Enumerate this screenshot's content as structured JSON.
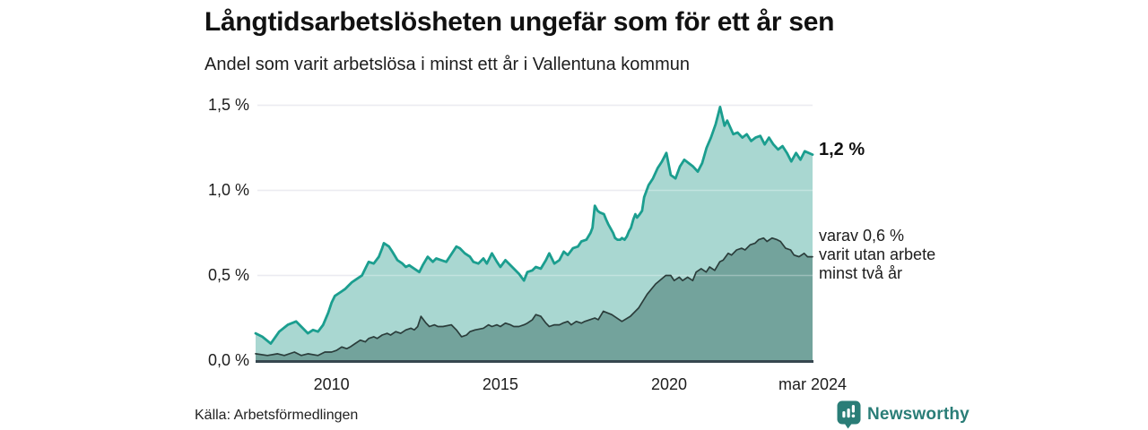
{
  "header": {},
  "chart_data": {
    "type": "area",
    "title": "Långtidsarbetslösheten ungefär som för ett år sen",
    "subtitle": "Andel som varit arbetslösa i minst ett år i Vallentuna kommun",
    "unit": "%",
    "x_domain": [
      2007.75,
      2024.25
    ],
    "y_domain": [
      0,
      1.5
    ],
    "grid": true,
    "legend_position": "direct-labels-right",
    "colors": {
      "grid": "#e3e3eb",
      "grid_over_fill": "rgba(255,255,255,0.30)",
      "baseline": "#37474f"
    },
    "y_ticks": [
      {
        "value": 0,
        "label": "0,0 %"
      },
      {
        "value": 0.5,
        "label": "0,5 %"
      },
      {
        "value": 1.0,
        "label": "1,0 %"
      },
      {
        "value": 1.5,
        "label": "1,5 %"
      }
    ],
    "x_ticks": [
      {
        "value": 2010,
        "label": "2010"
      },
      {
        "value": 2015,
        "label": "2015"
      },
      {
        "value": 2020,
        "label": "2020"
      },
      {
        "value": 2024.25,
        "label": "mar 2024"
      }
    ],
    "series": [
      {
        "name": "Andel som varit arbetslösa i minst ett år (totalt)",
        "fill": "#a9d7d1",
        "line": "#1b9e8f",
        "line_width": 2.8,
        "end_value": "1,2 %",
        "points": [
          [
            2007.75,
            0.16
          ],
          [
            2007.95,
            0.14
          ],
          [
            2008.2,
            0.1
          ],
          [
            2008.45,
            0.17
          ],
          [
            2008.7,
            0.21
          ],
          [
            2008.95,
            0.23
          ],
          [
            2009.1,
            0.2
          ],
          [
            2009.3,
            0.16
          ],
          [
            2009.45,
            0.18
          ],
          [
            2009.6,
            0.17
          ],
          [
            2009.75,
            0.21
          ],
          [
            2009.9,
            0.28
          ],
          [
            2010.0,
            0.34
          ],
          [
            2010.1,
            0.38
          ],
          [
            2010.25,
            0.4
          ],
          [
            2010.4,
            0.42
          ],
          [
            2010.5,
            0.44
          ],
          [
            2010.6,
            0.46
          ],
          [
            2010.75,
            0.48
          ],
          [
            2010.9,
            0.5
          ],
          [
            2011.0,
            0.54
          ],
          [
            2011.1,
            0.58
          ],
          [
            2011.25,
            0.57
          ],
          [
            2011.4,
            0.61
          ],
          [
            2011.5,
            0.66
          ],
          [
            2011.55,
            0.69
          ],
          [
            2011.7,
            0.67
          ],
          [
            2011.8,
            0.64
          ],
          [
            2011.95,
            0.59
          ],
          [
            2012.1,
            0.57
          ],
          [
            2012.2,
            0.55
          ],
          [
            2012.3,
            0.56
          ],
          [
            2012.45,
            0.54
          ],
          [
            2012.6,
            0.52
          ],
          [
            2012.7,
            0.56
          ],
          [
            2012.85,
            0.61
          ],
          [
            2013.0,
            0.58
          ],
          [
            2013.1,
            0.6
          ],
          [
            2013.25,
            0.59
          ],
          [
            2013.4,
            0.58
          ],
          [
            2013.5,
            0.61
          ],
          [
            2013.7,
            0.67
          ],
          [
            2013.8,
            0.66
          ],
          [
            2013.95,
            0.63
          ],
          [
            2014.1,
            0.61
          ],
          [
            2014.2,
            0.58
          ],
          [
            2014.35,
            0.57
          ],
          [
            2014.5,
            0.6
          ],
          [
            2014.6,
            0.57
          ],
          [
            2014.75,
            0.63
          ],
          [
            2014.9,
            0.58
          ],
          [
            2015.0,
            0.55
          ],
          [
            2015.15,
            0.59
          ],
          [
            2015.3,
            0.56
          ],
          [
            2015.4,
            0.54
          ],
          [
            2015.55,
            0.51
          ],
          [
            2015.7,
            0.47
          ],
          [
            2015.8,
            0.52
          ],
          [
            2015.95,
            0.53
          ],
          [
            2016.05,
            0.55
          ],
          [
            2016.2,
            0.54
          ],
          [
            2016.35,
            0.59
          ],
          [
            2016.45,
            0.63
          ],
          [
            2016.6,
            0.57
          ],
          [
            2016.75,
            0.59
          ],
          [
            2016.88,
            0.64
          ],
          [
            2017.0,
            0.62
          ],
          [
            2017.15,
            0.66
          ],
          [
            2017.3,
            0.67
          ],
          [
            2017.4,
            0.7
          ],
          [
            2017.55,
            0.71
          ],
          [
            2017.67,
            0.75
          ],
          [
            2017.73,
            0.78
          ],
          [
            2017.8,
            0.91
          ],
          [
            2017.88,
            0.88
          ],
          [
            2017.95,
            0.87
          ],
          [
            2018.07,
            0.86
          ],
          [
            2018.13,
            0.83
          ],
          [
            2018.2,
            0.8
          ],
          [
            2018.34,
            0.75
          ],
          [
            2018.4,
            0.72
          ],
          [
            2018.47,
            0.71
          ],
          [
            2018.55,
            0.71
          ],
          [
            2018.6,
            0.72
          ],
          [
            2018.68,
            0.71
          ],
          [
            2018.75,
            0.73
          ],
          [
            2018.81,
            0.76
          ],
          [
            2018.87,
            0.78
          ],
          [
            2018.94,
            0.83
          ],
          [
            2019.0,
            0.86
          ],
          [
            2019.05,
            0.84
          ],
          [
            2019.13,
            0.86
          ],
          [
            2019.2,
            0.88
          ],
          [
            2019.26,
            0.96
          ],
          [
            2019.39,
            1.03
          ],
          [
            2019.52,
            1.07
          ],
          [
            2019.66,
            1.13
          ],
          [
            2019.79,
            1.17
          ],
          [
            2019.92,
            1.22
          ],
          [
            2020.05,
            1.09
          ],
          [
            2020.19,
            1.07
          ],
          [
            2020.32,
            1.14
          ],
          [
            2020.45,
            1.18
          ],
          [
            2020.58,
            1.16
          ],
          [
            2020.71,
            1.14
          ],
          [
            2020.85,
            1.11
          ],
          [
            2020.98,
            1.16
          ],
          [
            2021.11,
            1.25
          ],
          [
            2021.24,
            1.31
          ],
          [
            2021.38,
            1.39
          ],
          [
            2021.51,
            1.49
          ],
          [
            2021.64,
            1.38
          ],
          [
            2021.72,
            1.41
          ],
          [
            2021.9,
            1.33
          ],
          [
            2022.03,
            1.34
          ],
          [
            2022.17,
            1.31
          ],
          [
            2022.3,
            1.33
          ],
          [
            2022.43,
            1.29
          ],
          [
            2022.56,
            1.31
          ],
          [
            2022.7,
            1.32
          ],
          [
            2022.83,
            1.27
          ],
          [
            2022.96,
            1.31
          ],
          [
            2023.09,
            1.27
          ],
          [
            2023.23,
            1.24
          ],
          [
            2023.36,
            1.26
          ],
          [
            2023.49,
            1.22
          ],
          [
            2023.62,
            1.17
          ],
          [
            2023.76,
            1.22
          ],
          [
            2023.89,
            1.18
          ],
          [
            2024.02,
            1.23
          ],
          [
            2024.25,
            1.21
          ]
        ]
      },
      {
        "name": "varav utan arbete minst två år",
        "fill": "#73a39c",
        "line": "#2b3d3b",
        "line_width": 1.7,
        "end_value": "0,6 %",
        "points": [
          [
            2007.75,
            0.04
          ],
          [
            2008.1,
            0.03
          ],
          [
            2008.4,
            0.04
          ],
          [
            2008.6,
            0.03
          ],
          [
            2008.9,
            0.05
          ],
          [
            2009.1,
            0.03
          ],
          [
            2009.3,
            0.04
          ],
          [
            2009.6,
            0.03
          ],
          [
            2009.8,
            0.05
          ],
          [
            2010.0,
            0.05
          ],
          [
            2010.15,
            0.06
          ],
          [
            2010.3,
            0.08
          ],
          [
            2010.45,
            0.07
          ],
          [
            2010.55,
            0.08
          ],
          [
            2010.7,
            0.1
          ],
          [
            2010.85,
            0.12
          ],
          [
            2011.0,
            0.11
          ],
          [
            2011.1,
            0.13
          ],
          [
            2011.25,
            0.14
          ],
          [
            2011.35,
            0.13
          ],
          [
            2011.5,
            0.15
          ],
          [
            2011.65,
            0.16
          ],
          [
            2011.75,
            0.15
          ],
          [
            2011.9,
            0.17
          ],
          [
            2012.05,
            0.16
          ],
          [
            2012.2,
            0.18
          ],
          [
            2012.35,
            0.19
          ],
          [
            2012.45,
            0.18
          ],
          [
            2012.55,
            0.2
          ],
          [
            2012.65,
            0.26
          ],
          [
            2012.8,
            0.22
          ],
          [
            2012.9,
            0.2
          ],
          [
            2013.05,
            0.21
          ],
          [
            2013.15,
            0.2
          ],
          [
            2013.3,
            0.2
          ],
          [
            2013.55,
            0.21
          ],
          [
            2013.7,
            0.18
          ],
          [
            2013.85,
            0.14
          ],
          [
            2014.0,
            0.15
          ],
          [
            2014.1,
            0.17
          ],
          [
            2014.25,
            0.18
          ],
          [
            2014.5,
            0.19
          ],
          [
            2014.65,
            0.21
          ],
          [
            2014.75,
            0.2
          ],
          [
            2014.9,
            0.21
          ],
          [
            2015.0,
            0.2
          ],
          [
            2015.15,
            0.22
          ],
          [
            2015.3,
            0.21
          ],
          [
            2015.4,
            0.2
          ],
          [
            2015.55,
            0.2
          ],
          [
            2015.7,
            0.21
          ],
          [
            2015.8,
            0.22
          ],
          [
            2015.95,
            0.24
          ],
          [
            2016.05,
            0.27
          ],
          [
            2016.2,
            0.26
          ],
          [
            2016.35,
            0.22
          ],
          [
            2016.45,
            0.2
          ],
          [
            2016.6,
            0.21
          ],
          [
            2016.75,
            0.21
          ],
          [
            2016.85,
            0.22
          ],
          [
            2017.0,
            0.23
          ],
          [
            2017.1,
            0.21
          ],
          [
            2017.25,
            0.23
          ],
          [
            2017.4,
            0.22
          ],
          [
            2017.5,
            0.23
          ],
          [
            2017.65,
            0.24
          ],
          [
            2017.8,
            0.25
          ],
          [
            2017.9,
            0.24
          ],
          [
            2018.05,
            0.29
          ],
          [
            2018.3,
            0.27
          ],
          [
            2018.6,
            0.23
          ],
          [
            2018.85,
            0.26
          ],
          [
            2019.1,
            0.31
          ],
          [
            2019.35,
            0.39
          ],
          [
            2019.6,
            0.45
          ],
          [
            2019.9,
            0.5
          ],
          [
            2020.05,
            0.5
          ],
          [
            2020.15,
            0.47
          ],
          [
            2020.3,
            0.49
          ],
          [
            2020.4,
            0.47
          ],
          [
            2020.55,
            0.49
          ],
          [
            2020.7,
            0.47
          ],
          [
            2020.8,
            0.52
          ],
          [
            2020.95,
            0.54
          ],
          [
            2021.1,
            0.52
          ],
          [
            2021.2,
            0.55
          ],
          [
            2021.35,
            0.53
          ],
          [
            2021.5,
            0.58
          ],
          [
            2021.6,
            0.59
          ],
          [
            2021.75,
            0.63
          ],
          [
            2021.85,
            0.62
          ],
          [
            2022.0,
            0.65
          ],
          [
            2022.15,
            0.66
          ],
          [
            2022.25,
            0.65
          ],
          [
            2022.4,
            0.68
          ],
          [
            2022.55,
            0.69
          ],
          [
            2022.65,
            0.71
          ],
          [
            2022.8,
            0.72
          ],
          [
            2022.9,
            0.7
          ],
          [
            2023.05,
            0.72
          ],
          [
            2023.2,
            0.71
          ],
          [
            2023.3,
            0.7
          ],
          [
            2023.45,
            0.66
          ],
          [
            2023.6,
            0.65
          ],
          [
            2023.7,
            0.62
          ],
          [
            2023.85,
            0.61
          ],
          [
            2024.0,
            0.63
          ],
          [
            2024.1,
            0.61
          ],
          [
            2024.25,
            0.61
          ]
        ]
      }
    ],
    "end_labels": {
      "total": "1,2 %",
      "subset_lines": [
        "varav 0,6 %",
        "varit utan arbete",
        "minst två år"
      ]
    }
  },
  "footer": {
    "source": "Källa: Arbetsförmedlingen",
    "brand": "Newsworthy",
    "brand_color": "#2a7d77"
  }
}
